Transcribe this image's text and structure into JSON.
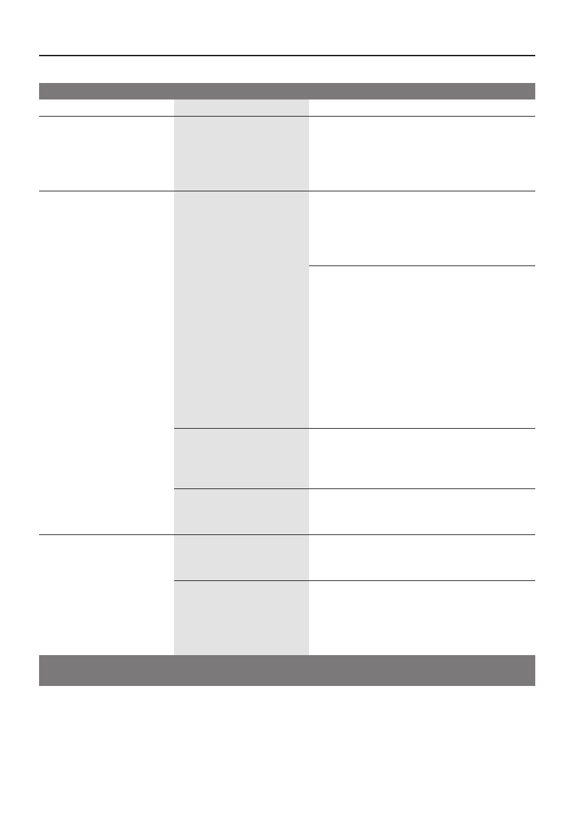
{
  "document": {
    "colors": {
      "header_bar": "#7b7979",
      "shaded_column": "#e3e3e3",
      "rule": "#231f20",
      "background": "#ffffff"
    },
    "table": {
      "header": "",
      "footer": "",
      "rows": []
    }
  }
}
